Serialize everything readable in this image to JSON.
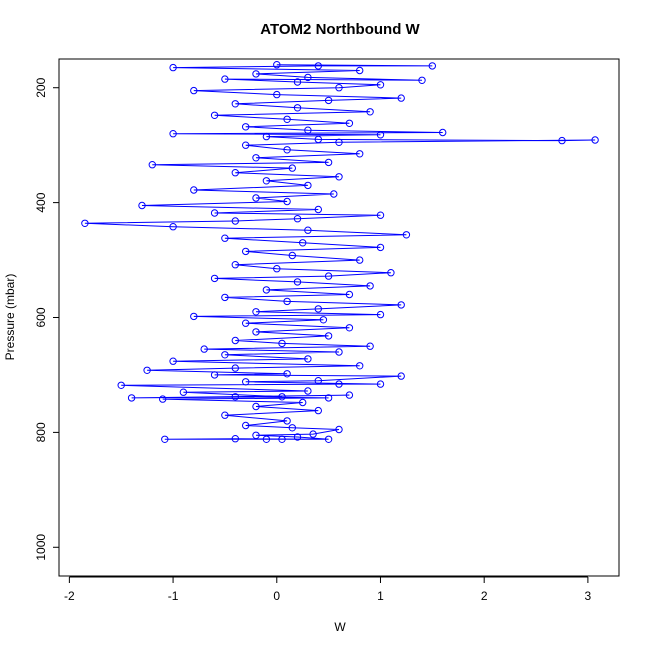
{
  "chart_data": {
    "type": "line",
    "title": "ATOM2 Northbound W",
    "xlabel": "W",
    "ylabel": "Pressure (mbar)",
    "xlim": [
      -2.1,
      3.3
    ],
    "ylim": [
      1050,
      150
    ],
    "y_reversed": true,
    "x_ticks": [
      -2,
      -1,
      0,
      1,
      2,
      3
    ],
    "y_ticks": [
      200,
      400,
      600,
      800,
      1000
    ],
    "grid": false,
    "legend": "none",
    "series": [
      {
        "marker": "open-circle",
        "line": true,
        "color": "#0000ff",
        "points": [
          [
            0.05,
            812
          ],
          [
            -0.1,
            812
          ],
          [
            -1.08,
            812
          ],
          [
            -0.4,
            811
          ],
          [
            0.5,
            812
          ],
          [
            0.2,
            808
          ],
          [
            -0.2,
            805
          ],
          [
            0.35,
            803
          ],
          [
            0.6,
            795
          ],
          [
            0.15,
            792
          ],
          [
            -0.3,
            788
          ],
          [
            0.1,
            780
          ],
          [
            -0.5,
            770
          ],
          [
            0.4,
            762
          ],
          [
            -0.2,
            755
          ],
          [
            0.25,
            748
          ],
          [
            -1.1,
            742
          ],
          [
            0.5,
            740
          ],
          [
            -0.4,
            738
          ],
          [
            0.7,
            735
          ],
          [
            -1.4,
            740
          ],
          [
            0.05,
            738
          ],
          [
            -0.9,
            730
          ],
          [
            0.3,
            728
          ],
          [
            -1.5,
            718
          ],
          [
            0.6,
            716
          ],
          [
            1.0,
            716
          ],
          [
            -0.3,
            712
          ],
          [
            0.4,
            710
          ],
          [
            1.2,
            702
          ],
          [
            -0.6,
            700
          ],
          [
            0.1,
            698
          ],
          [
            -1.25,
            692
          ],
          [
            -0.4,
            688
          ],
          [
            0.8,
            684
          ],
          [
            -1.0,
            676
          ],
          [
            0.3,
            672
          ],
          [
            -0.5,
            665
          ],
          [
            0.6,
            660
          ],
          [
            -0.7,
            655
          ],
          [
            0.9,
            650
          ],
          [
            0.05,
            645
          ],
          [
            -0.4,
            640
          ],
          [
            0.5,
            632
          ],
          [
            -0.2,
            625
          ],
          [
            0.7,
            618
          ],
          [
            -0.3,
            610
          ],
          [
            0.45,
            604
          ],
          [
            -0.8,
            598
          ],
          [
            1.0,
            595
          ],
          [
            -0.2,
            590
          ],
          [
            0.4,
            585
          ],
          [
            1.2,
            578
          ],
          [
            0.1,
            572
          ],
          [
            -0.5,
            565
          ],
          [
            0.7,
            560
          ],
          [
            -0.1,
            552
          ],
          [
            0.9,
            545
          ],
          [
            0.2,
            538
          ],
          [
            -0.6,
            532
          ],
          [
            0.5,
            528
          ],
          [
            1.1,
            522
          ],
          [
            0.0,
            515
          ],
          [
            -0.4,
            508
          ],
          [
            0.8,
            500
          ],
          [
            0.15,
            492
          ],
          [
            -0.3,
            485
          ],
          [
            1.0,
            478
          ],
          [
            0.25,
            470
          ],
          [
            -0.5,
            462
          ],
          [
            1.25,
            456
          ],
          [
            0.3,
            448
          ],
          [
            -1.0,
            442
          ],
          [
            -1.85,
            436
          ],
          [
            -0.4,
            432
          ],
          [
            0.2,
            428
          ],
          [
            1.0,
            422
          ],
          [
            -0.6,
            418
          ],
          [
            0.4,
            412
          ],
          [
            -1.3,
            405
          ],
          [
            0.1,
            398
          ],
          [
            -0.2,
            392
          ],
          [
            0.55,
            385
          ],
          [
            -0.8,
            378
          ],
          [
            0.3,
            370
          ],
          [
            -0.1,
            362
          ],
          [
            0.6,
            355
          ],
          [
            -0.4,
            348
          ],
          [
            0.15,
            340
          ],
          [
            -1.2,
            334
          ],
          [
            0.5,
            330
          ],
          [
            -0.2,
            322
          ],
          [
            0.8,
            315
          ],
          [
            0.1,
            308
          ],
          [
            -0.3,
            300
          ],
          [
            0.6,
            295
          ],
          [
            3.07,
            291
          ],
          [
            2.75,
            292
          ],
          [
            0.4,
            290
          ],
          [
            -0.1,
            285
          ],
          [
            1.0,
            282
          ],
          [
            -1.0,
            280
          ],
          [
            1.6,
            278
          ],
          [
            0.3,
            274
          ],
          [
            -0.3,
            268
          ],
          [
            0.7,
            262
          ],
          [
            0.1,
            255
          ],
          [
            -0.6,
            248
          ],
          [
            0.9,
            242
          ],
          [
            0.2,
            235
          ],
          [
            -0.4,
            228
          ],
          [
            0.5,
            222
          ],
          [
            1.2,
            218
          ],
          [
            0.0,
            212
          ],
          [
            -0.8,
            205
          ],
          [
            0.6,
            200
          ],
          [
            1.0,
            195
          ],
          [
            0.2,
            190
          ],
          [
            -0.5,
            185
          ],
          [
            1.4,
            187
          ],
          [
            0.3,
            182
          ],
          [
            -0.2,
            176
          ],
          [
            0.8,
            170
          ],
          [
            -1.0,
            165
          ],
          [
            0.4,
            162
          ],
          [
            1.5,
            162
          ],
          [
            0.0,
            160
          ]
        ]
      }
    ]
  }
}
